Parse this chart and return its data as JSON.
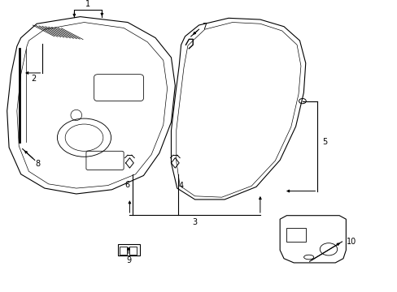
{
  "background_color": "#ffffff",
  "line_color": "#000000",
  "label_color": "#000000"
}
